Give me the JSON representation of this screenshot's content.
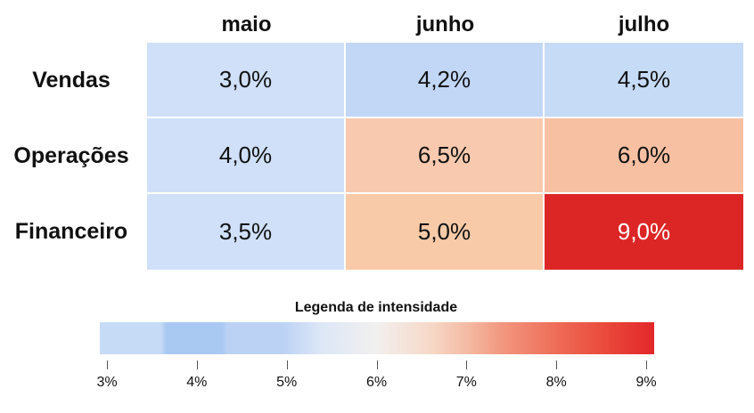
{
  "chart_data": {
    "type": "heatmap",
    "columns": [
      "maio",
      "junho",
      "julho"
    ],
    "rows": [
      "Vendas",
      "Operações",
      "Financeiro"
    ],
    "values": [
      [
        3.0,
        4.2,
        4.5
      ],
      [
        4.0,
        6.5,
        6.0
      ],
      [
        3.5,
        5.0,
        9.0
      ]
    ],
    "labels": [
      [
        "3,0%",
        "4,2%",
        "4,5%"
      ],
      [
        "4,0%",
        "6,5%",
        "6,0%"
      ],
      [
        "3,5%",
        "5,0%",
        "9,0%"
      ]
    ],
    "cell_colors": [
      [
        "#cfe0f8",
        "#c2d7f6",
        "#c6dbf6"
      ],
      [
        "#cfe0f8",
        "#f8c9ae",
        "#f8c0a3"
      ],
      [
        "#cfe0f8",
        "#f8caa8",
        "#dc2626"
      ]
    ],
    "legend": {
      "title": "Legenda de intensidade",
      "ticks": [
        3,
        4,
        5,
        6,
        7,
        8,
        9
      ],
      "tick_labels": [
        "3%",
        "4%",
        "5%",
        "6%",
        "7%",
        "8%",
        "9%"
      ],
      "range": [
        3,
        9
      ],
      "low_color": "#c6dbf6",
      "high_color": "#e2272a"
    }
  }
}
